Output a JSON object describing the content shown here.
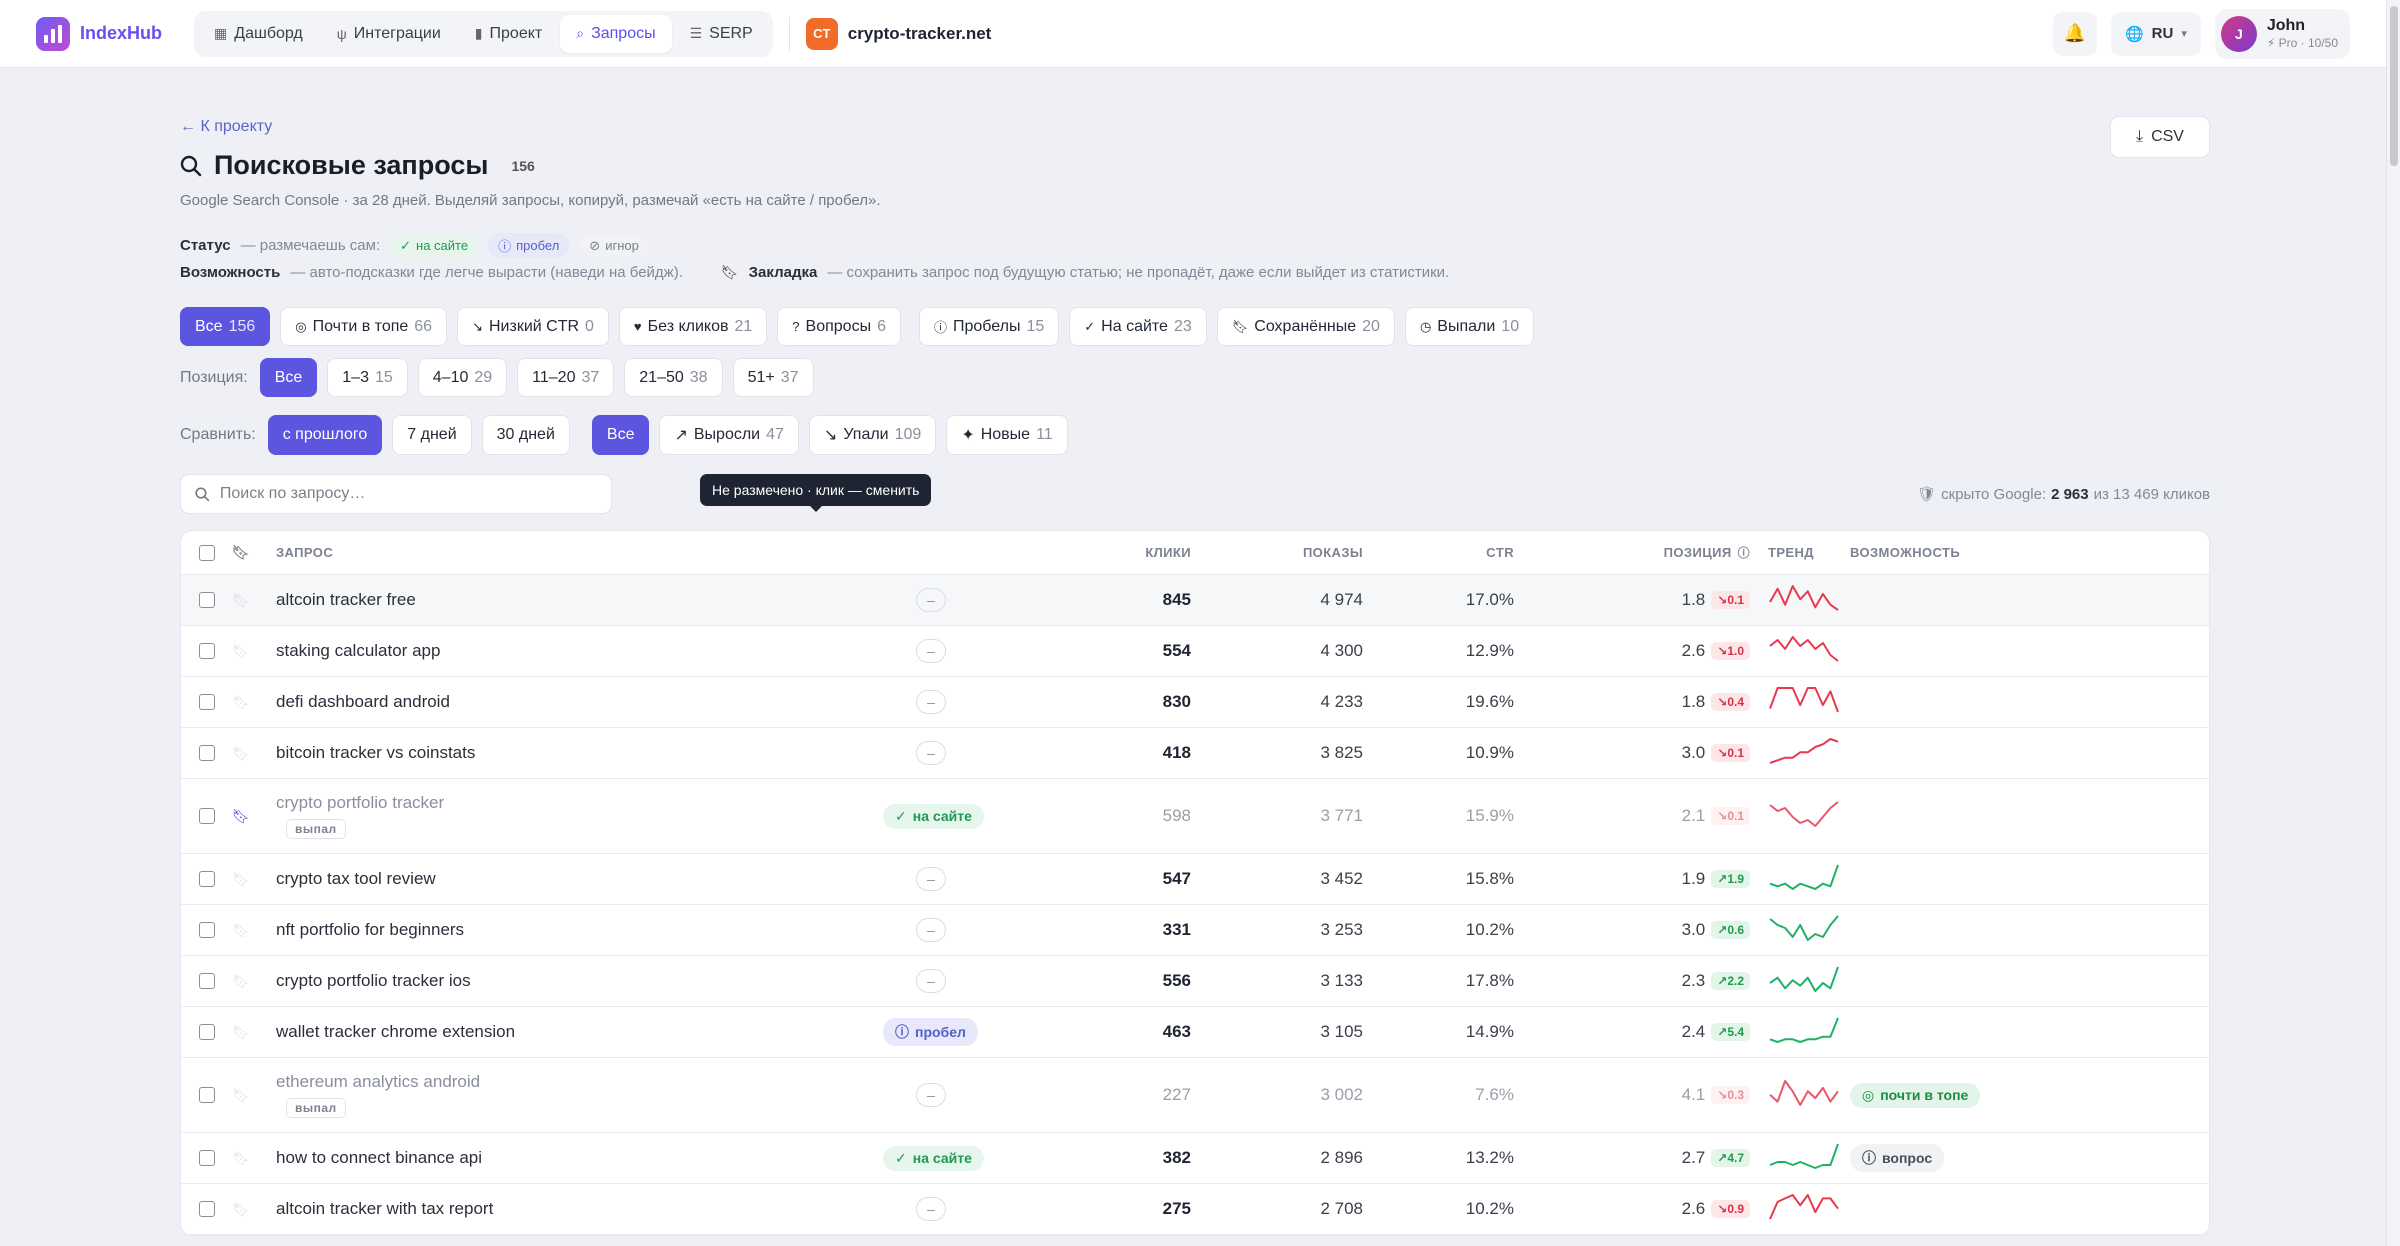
{
  "app": {
    "name": "IndexHub"
  },
  "nav": [
    {
      "label": "Дашборд",
      "icon": "grid-icon",
      "active": false
    },
    {
      "label": "Интеграции",
      "icon": "plug-icon",
      "active": false
    },
    {
      "label": "Проект",
      "icon": "bar-chart-icon",
      "active": false
    },
    {
      "label": "Запросы",
      "icon": "search-icon",
      "active": true
    },
    {
      "label": "SERP",
      "icon": "list-icon",
      "active": false
    }
  ],
  "site": {
    "badge": "CT",
    "name": "crypto-tracker.net",
    "badge_color": "#f26b2a"
  },
  "lang": "RU",
  "user": {
    "initial": "J",
    "name": "John",
    "plan": "Pro · 10/50"
  },
  "back_label": "← К проекту",
  "page": {
    "title": "Поисковые запросы",
    "count": "156",
    "csv_label": "CSV",
    "subtitle": "Google Search Console · за 28 дней. Выделяй запросы, копируй, размечай «есть на сайте / пробел»."
  },
  "legend": {
    "status_label": "Статус",
    "status_hint": "— размечаешь сам:",
    "tag_onsite": "на сайте",
    "tag_gap": "пробел",
    "tag_ignore": "игнор",
    "opportunity_label": "Возможность",
    "opportunity_hint": "— авто-подсказки где легче вырасти (наведи на бейдж).",
    "bookmark_label": "Закладка",
    "bookmark_hint": "— сохранить запрос под будущую статью; не пропадёт, даже если выйдет из статистики."
  },
  "filter_tabs": [
    {
      "label": "Все",
      "count": "156",
      "active": true
    },
    {
      "label": "Почти в топе",
      "count": "66",
      "active": false
    },
    {
      "label": "Низкий CTR",
      "count": "0",
      "active": false
    },
    {
      "label": "Без кликов",
      "count": "21",
      "active": false
    },
    {
      "label": "Вопросы",
      "count": "6",
      "active": false
    },
    {
      "label": "Пробелы",
      "count": "15",
      "active": false
    },
    {
      "label": "На сайте",
      "count": "23",
      "active": false
    },
    {
      "label": "Сохранённые",
      "count": "20",
      "active": false
    },
    {
      "label": "Выпали",
      "count": "10",
      "active": false
    }
  ],
  "position_filter": {
    "label": "Позиция:",
    "options": [
      {
        "label": "Все",
        "count": "",
        "active": true
      },
      {
        "label": "1–3",
        "count": "15",
        "active": false
      },
      {
        "label": "4–10",
        "count": "29",
        "active": false
      },
      {
        "label": "11–20",
        "count": "37",
        "active": false
      },
      {
        "label": "21–50",
        "count": "38",
        "active": false
      },
      {
        "label": "51+",
        "count": "37",
        "active": false
      }
    ]
  },
  "compare_filter": {
    "label": "Сравнить:",
    "periods": [
      {
        "label": "с прошлого",
        "active": true
      },
      {
        "label": "7 дней",
        "active": false
      },
      {
        "label": "30 дней",
        "active": false
      }
    ],
    "changes": [
      {
        "label": "Все",
        "count": "",
        "active": true
      },
      {
        "label": "Выросли",
        "count": "47",
        "active": false
      },
      {
        "label": "Упали",
        "count": "109",
        "active": false
      },
      {
        "label": "Новые",
        "count": "11",
        "active": false
      }
    ]
  },
  "search": {
    "placeholder": "Поиск по запросу…"
  },
  "hidden": {
    "prefix": "скрыто Google:",
    "value": "2 963",
    "suffix": "из 13 469 кликов"
  },
  "table": {
    "headers": {
      "query": "ЗАПРОС",
      "clicks": "КЛИКИ",
      "impressions": "ПОКАЗЫ",
      "ctr": "CTR",
      "position": "ПОЗИЦИЯ",
      "trend": "ТРЕНД",
      "opportunity": "ВОЗМОЖНОСТЬ"
    },
    "rows": [
      {
        "query": "altcoin tracker free",
        "status": "none",
        "clicks": "845",
        "impressions": "4 974",
        "ctr": "17.0%",
        "pos": "1.8",
        "delta": "0.1",
        "dir": "down",
        "trend": [
          4,
          9,
          3,
          10,
          5,
          8,
          2,
          7,
          3,
          1
        ],
        "bookmarked": false,
        "dropped": false,
        "opp": "",
        "color": "#e8394f"
      },
      {
        "query": "staking calculator app",
        "status": "none",
        "clicks": "554",
        "impressions": "4 300",
        "ctr": "12.9%",
        "pos": "2.6",
        "delta": "1.0",
        "dir": "down",
        "trend": [
          6,
          8,
          5,
          9,
          6,
          8,
          5,
          7,
          3,
          1
        ],
        "bookmarked": false,
        "dropped": false,
        "opp": "",
        "color": "#e8394f"
      },
      {
        "query": "defi dashboard android",
        "status": "none",
        "clicks": "830",
        "impressions": "4 233",
        "ctr": "19.6%",
        "pos": "1.8",
        "delta": "0.4",
        "dir": "down",
        "trend": [
          3,
          9,
          9,
          9,
          4,
          9,
          9,
          4,
          8,
          2
        ],
        "bookmarked": false,
        "dropped": false,
        "opp": "",
        "color": "#e8394f"
      },
      {
        "query": "bitcoin tracker vs coinstats",
        "status": "none",
        "clicks": "418",
        "impressions": "3 825",
        "ctr": "10.9%",
        "pos": "3.0",
        "delta": "0.1",
        "dir": "down",
        "trend": [
          1,
          2,
          3,
          3,
          5,
          5,
          7,
          8,
          10,
          9
        ],
        "bookmarked": false,
        "dropped": false,
        "opp": "",
        "color": "#e8394f"
      },
      {
        "query": "crypto portfolio tracker",
        "status": "onsite",
        "clicks": "598",
        "impressions": "3 771",
        "ctr": "15.9%",
        "pos": "2.1",
        "delta": "0.1",
        "dir": "down",
        "trend": [
          8,
          6,
          7,
          4,
          2,
          3,
          1,
          4,
          7,
          9
        ],
        "bookmarked": true,
        "dropped": true,
        "opp": "",
        "color": "#e8394f"
      },
      {
        "query": "crypto tax tool review",
        "status": "none",
        "clicks": "547",
        "impressions": "3 452",
        "ctr": "15.8%",
        "pos": "1.9",
        "delta": "1.9",
        "dir": "up",
        "trend": [
          3,
          2,
          3,
          1,
          3,
          2,
          1,
          3,
          2,
          10
        ],
        "bookmarked": false,
        "dropped": false,
        "opp": "",
        "color": "#1fb267"
      },
      {
        "query": "nft portfolio for beginners",
        "status": "none",
        "clicks": "331",
        "impressions": "3 253",
        "ctr": "10.2%",
        "pos": "3.0",
        "delta": "0.6",
        "dir": "up",
        "trend": [
          9,
          7,
          6,
          3,
          7,
          2,
          4,
          3,
          7,
          10
        ],
        "bookmarked": false,
        "dropped": false,
        "opp": "",
        "color": "#1fb267"
      },
      {
        "query": "crypto portfolio tracker ios",
        "status": "none",
        "clicks": "556",
        "impressions": "3 133",
        "ctr": "17.8%",
        "pos": "2.3",
        "delta": "2.2",
        "dir": "up",
        "trend": [
          4,
          6,
          2,
          5,
          3,
          6,
          1,
          4,
          2,
          10
        ],
        "bookmarked": false,
        "dropped": false,
        "opp": "",
        "color": "#1fb267"
      },
      {
        "query": "wallet tracker chrome extension",
        "status": "gap",
        "clicks": "463",
        "impressions": "3 105",
        "ctr": "14.9%",
        "pos": "2.4",
        "delta": "5.4",
        "dir": "up",
        "trend": [
          2,
          1,
          2,
          2,
          1,
          2,
          2,
          3,
          3,
          10
        ],
        "bookmarked": false,
        "dropped": false,
        "opp": "",
        "color": "#1fb267"
      },
      {
        "query": "ethereum analytics android",
        "status": "none",
        "clicks": "227",
        "impressions": "3 002",
        "ctr": "7.6%",
        "pos": "4.1",
        "delta": "0.3",
        "dir": "down",
        "trend": [
          5,
          3,
          9,
          6,
          2,
          6,
          4,
          7,
          3,
          6
        ],
        "bookmarked": false,
        "dropped": true,
        "opp": "почти в топе",
        "oppkind": "green",
        "color": "#e8394f"
      },
      {
        "query": "how to connect binance api",
        "status": "onsite",
        "clicks": "382",
        "impressions": "2 896",
        "ctr": "13.2%",
        "pos": "2.7",
        "delta": "4.7",
        "dir": "up",
        "trend": [
          3,
          4,
          4,
          3,
          4,
          3,
          2,
          3,
          3,
          10
        ],
        "bookmarked": false,
        "dropped": false,
        "opp": "вопрос",
        "oppkind": "gray",
        "color": "#1fb267"
      },
      {
        "query": "altcoin tracker with tax report",
        "status": "none",
        "clicks": "275",
        "impressions": "2 708",
        "ctr": "10.2%",
        "pos": "2.6",
        "delta": "0.9",
        "dir": "down",
        "trend": [
          2,
          7,
          8,
          9,
          6,
          9,
          4,
          8,
          8,
          5
        ],
        "bookmarked": false,
        "dropped": false,
        "opp": "",
        "color": "#e8394f"
      }
    ],
    "status_onsite": "на сайте",
    "status_gap": "пробел",
    "dropped_label": "выпал"
  },
  "tooltip": "Не размечено · клик — сменить"
}
